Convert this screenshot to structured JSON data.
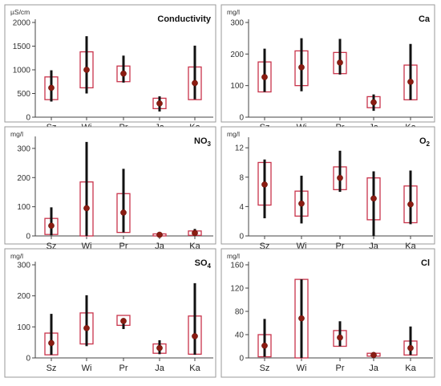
{
  "chart_data": [
    {
      "type": "box",
      "title": "Conductivity",
      "unit": "µS/cm",
      "ylim": [
        0,
        2000
      ],
      "yticks": [
        0,
        500,
        1000,
        1500,
        2000
      ],
      "categories": [
        "Sz",
        "Wi",
        "Pr",
        "Ja",
        "Ka"
      ],
      "series": [
        {
          "box_low": [
            370,
            620,
            750,
            180,
            370
          ],
          "box_high": [
            850,
            1380,
            1080,
            400,
            1060
          ],
          "whisker_low": [
            330,
            500,
            730,
            120,
            380
          ],
          "whisker_high": [
            990,
            1710,
            1300,
            440,
            1510
          ],
          "mean": [
            620,
            1000,
            920,
            290,
            720
          ]
        }
      ]
    },
    {
      "type": "box",
      "title": "Ca",
      "unit": "mg/l",
      "ylim": [
        0,
        300
      ],
      "yticks": [
        0,
        100,
        200,
        300
      ],
      "categories": [
        "Sz",
        "Wi",
        "Pr",
        "Ja",
        "Ka"
      ],
      "series": [
        {
          "box_low": [
            80,
            100,
            138,
            30,
            55
          ],
          "box_high": [
            175,
            210,
            205,
            65,
            165
          ],
          "whisker_low": [
            80,
            82,
            135,
            20,
            55
          ],
          "whisker_high": [
            217,
            250,
            248,
            72,
            232
          ],
          "mean": [
            127,
            158,
            173,
            47,
            112
          ]
        }
      ]
    },
    {
      "type": "box",
      "title": "NO",
      "title_sub": "3",
      "unit": "mg/l",
      "ylim": [
        0,
        330
      ],
      "yticks": [
        0,
        100,
        200,
        300
      ],
      "categories": [
        "Sz",
        "Wi",
        "Pr",
        "Ja",
        "Ka"
      ],
      "series": [
        {
          "box_low": [
            5,
            0,
            12,
            0,
            2
          ],
          "box_high": [
            60,
            185,
            145,
            7,
            17
          ],
          "whisker_low": [
            2,
            0,
            12,
            0,
            0
          ],
          "whisker_high": [
            98,
            322,
            230,
            8,
            24
          ],
          "mean": [
            35,
            95,
            80,
            4,
            10
          ]
        }
      ]
    },
    {
      "type": "box",
      "title": "O",
      "title_sub": "2",
      "unit": "mg/l",
      "ylim": [
        0,
        13
      ],
      "yticks": [
        0,
        4,
        8,
        12
      ],
      "categories": [
        "Sz",
        "Wi",
        "Pr",
        "Ja",
        "Ka"
      ],
      "series": [
        {
          "box_low": [
            4.2,
            2.7,
            6.3,
            2.2,
            1.8
          ],
          "box_high": [
            10.0,
            6.1,
            9.4,
            7.9,
            6.8
          ],
          "whisker_low": [
            2.4,
            1.7,
            6.0,
            0.0,
            1.6
          ],
          "whisker_high": [
            10.4,
            8.2,
            11.6,
            8.8,
            8.9
          ],
          "mean": [
            7.0,
            4.4,
            7.9,
            5.1,
            4.3
          ]
        }
      ]
    },
    {
      "type": "box",
      "title": "SO",
      "title_sub": "4",
      "unit": "mg/l",
      "ylim": [
        0,
        300
      ],
      "yticks": [
        0,
        100,
        200,
        300
      ],
      "categories": [
        "Sz",
        "Wi",
        "Pr",
        "Ja",
        "Ka"
      ],
      "series": [
        {
          "box_low": [
            10,
            45,
            105,
            15,
            12
          ],
          "box_high": [
            80,
            145,
            137,
            45,
            135
          ],
          "whisker_low": [
            10,
            38,
            93,
            12,
            10
          ],
          "whisker_high": [
            142,
            202,
            128,
            57,
            241
          ],
          "mean": [
            48,
            96,
            119,
            32,
            70
          ]
        }
      ]
    },
    {
      "type": "box",
      "title": "Cl",
      "unit": "mg/l",
      "ylim": [
        0,
        160
      ],
      "yticks": [
        0,
        40,
        80,
        120,
        160
      ],
      "categories": [
        "Sz",
        "Wi",
        "Pr",
        "Ja",
        "Ka"
      ],
      "series": [
        {
          "box_low": [
            2,
            0,
            20,
            3,
            5
          ],
          "box_high": [
            40,
            135,
            47,
            8,
            29
          ],
          "whisker_low": [
            2,
            0,
            20,
            3,
            5
          ],
          "whisker_high": [
            67,
            135,
            63,
            8,
            54
          ],
          "mean": [
            21,
            68,
            35,
            5,
            17
          ]
        }
      ]
    }
  ],
  "colors": {
    "box_edge": "#c8334a",
    "whisker": "#111111",
    "mean_marker": "#8b1c12",
    "frame": "#9a9a9a"
  }
}
